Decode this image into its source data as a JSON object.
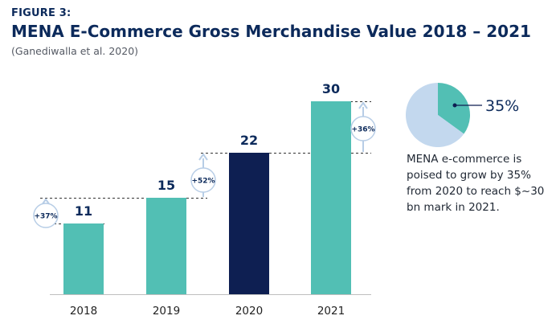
{
  "figure": {
    "label": "FIGURE 3:",
    "title": "MENA E-Commerce Gross Merchandise Value 2018 – 2021",
    "source": "(Ganediwalla et al. 2020)"
  },
  "chart_data": {
    "type": "bar",
    "title": "MENA E-Commerce Gross Merchandise Value 2018 – 2021",
    "xlabel": "",
    "ylabel": "",
    "ylim": [
      0,
      32
    ],
    "grid": false,
    "categories": [
      "2018",
      "2019",
      "2020",
      "2021"
    ],
    "values": [
      11,
      15,
      22,
      30
    ],
    "value_labels": [
      "11",
      "15",
      "22",
      "30"
    ],
    "bar_colors": [
      "#52bfb4",
      "#52bfb4",
      "#0e1f52",
      "#52bfb4"
    ],
    "growth_annotations": [
      {
        "from": "2018",
        "to": "2019",
        "label": "+37%"
      },
      {
        "from": "2019",
        "to": "2020",
        "label": "+52%"
      },
      {
        "from": "2020",
        "to": "2021",
        "label": "+36%"
      }
    ],
    "pie": {
      "slices": [
        {
          "name": "growth",
          "value": 35,
          "color": "#52bfb4"
        },
        {
          "name": "rest",
          "value": 65,
          "color": "#c3d8ee"
        }
      ],
      "label": "35%"
    }
  },
  "callout": {
    "text": "MENA e-commerce is poised to grow by 35% from 2020 to reach $~30 bn mark in 2021."
  },
  "colors": {
    "title": "#0c2a5b",
    "teal": "#52bfb4",
    "navy": "#0e1f52",
    "arrow": "#b7cde6",
    "pie_rest": "#c3d8ee",
    "axis": "#bfbfbf"
  }
}
